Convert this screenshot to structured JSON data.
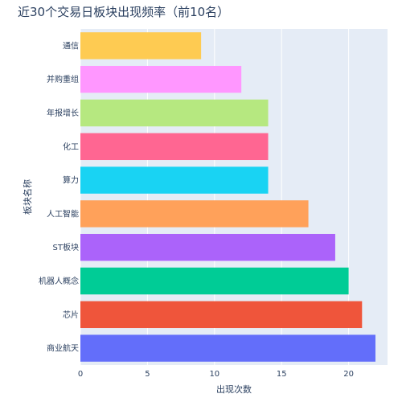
{
  "chart_data": {
    "type": "bar",
    "orientation": "horizontal",
    "title": "近30个交易日板块出现频率（前10名）",
    "xlabel": "出现次数",
    "ylabel": "板块名称",
    "xlim": [
      0,
      22.9
    ],
    "xticks": [
      0,
      5,
      10,
      15,
      20
    ],
    "grid": true,
    "categories": [
      "商业航天",
      "芯片",
      "机器人概念",
      "ST板块",
      "人工智能",
      "算力",
      "化工",
      "年报增长",
      "并购重组",
      "通信"
    ],
    "values": [
      22,
      21,
      20,
      19,
      17,
      14,
      14,
      14,
      12,
      9
    ],
    "colors": [
      "#636efa",
      "#ef553b",
      "#00cc96",
      "#ab63fa",
      "#ffa15a",
      "#19d3f3",
      "#ff6692",
      "#b6e880",
      "#ff97ff",
      "#fecb52"
    ]
  },
  "style": {
    "plot_background": "#e5ecf6",
    "grid_color": "#ffffff",
    "text_color": "#2a3f5f"
  }
}
